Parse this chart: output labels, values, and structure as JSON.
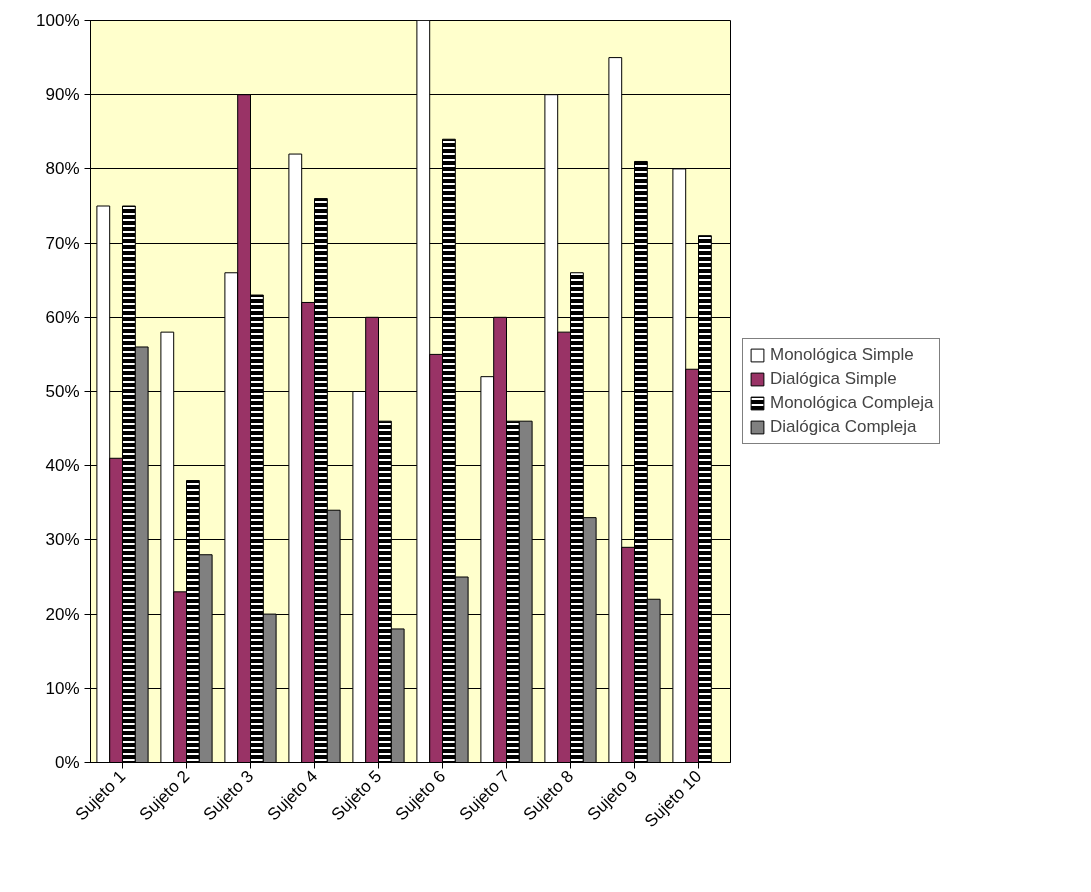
{
  "chart_data": {
    "type": "bar",
    "categories": [
      "Sujeto 1",
      "Sujeto 2",
      "Sujeto 3",
      "Sujeto 4",
      "Sujeto 5",
      "Sujeto 6",
      "Sujeto 7",
      "Sujeto 8",
      "Sujeto 9",
      "Sujeto 10"
    ],
    "series": [
      {
        "name": "Monológica Simple",
        "color": "#ffffff",
        "values": [
          75,
          58,
          66,
          82,
          50,
          100,
          52,
          90,
          95,
          80
        ]
      },
      {
        "name": "Dialógica Simple",
        "color": "#993366",
        "values": [
          41,
          23,
          90,
          62,
          60,
          55,
          60,
          58,
          29,
          53
        ]
      },
      {
        "name": "Monológica Compleja",
        "color": "#000000",
        "values": [
          75,
          38,
          63,
          76,
          46,
          84,
          46,
          66,
          81,
          71
        ]
      },
      {
        "name": "Dialógica Compleja",
        "color": "#808080",
        "values": [
          56,
          28,
          20,
          34,
          18,
          25,
          46,
          33,
          22,
          null
        ]
      }
    ],
    "ylim": [
      0,
      100
    ],
    "yticks": [
      {
        "value": 0,
        "label": "0%"
      },
      {
        "value": 10,
        "label": "10%"
      },
      {
        "value": 20,
        "label": "20%"
      },
      {
        "value": 30,
        "label": "30%"
      },
      {
        "value": 40,
        "label": "40%"
      },
      {
        "value": 50,
        "label": "50%"
      },
      {
        "value": 60,
        "label": "60%"
      },
      {
        "value": 70,
        "label": "70%"
      },
      {
        "value": 80,
        "label": "80%"
      },
      {
        "value": 90,
        "label": "90%"
      },
      {
        "value": 100,
        "label": "100%"
      }
    ],
    "grid": "y",
    "legend": "right"
  }
}
